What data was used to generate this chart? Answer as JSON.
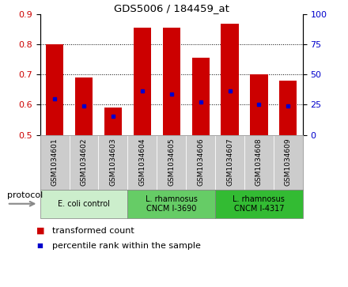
{
  "title": "GDS5006 / 184459_at",
  "samples": [
    "GSM1034601",
    "GSM1034602",
    "GSM1034603",
    "GSM1034604",
    "GSM1034605",
    "GSM1034606",
    "GSM1034607",
    "GSM1034608",
    "GSM1034609"
  ],
  "bar_heights": [
    0.8,
    0.69,
    0.59,
    0.855,
    0.855,
    0.755,
    0.87,
    0.7,
    0.68
  ],
  "blue_dots": [
    0.62,
    0.597,
    0.563,
    0.645,
    0.635,
    0.61,
    0.645,
    0.6,
    0.595
  ],
  "ylim_left": [
    0.5,
    0.9
  ],
  "ylim_right": [
    0,
    100
  ],
  "yticks_left": [
    0.5,
    0.6,
    0.7,
    0.8,
    0.9
  ],
  "yticks_right": [
    0,
    25,
    50,
    75,
    100
  ],
  "bar_color": "#cc0000",
  "dot_color": "#0000cc",
  "bar_bottom": 0.5,
  "groups": [
    {
      "label": "E. coli control",
      "indices": [
        0,
        1,
        2
      ],
      "color": "#cceecc"
    },
    {
      "label": "L. rhamnosus\nCNCM I-3690",
      "indices": [
        3,
        4,
        5
      ],
      "color": "#66cc66"
    },
    {
      "label": "L. rhamnosus\nCNCM I-4317",
      "indices": [
        6,
        7,
        8
      ],
      "color": "#33bb33"
    }
  ],
  "sample_box_color": "#cccccc",
  "legend_bar_label": "transformed count",
  "legend_dot_label": "percentile rank within the sample",
  "protocol_label": "protocol"
}
